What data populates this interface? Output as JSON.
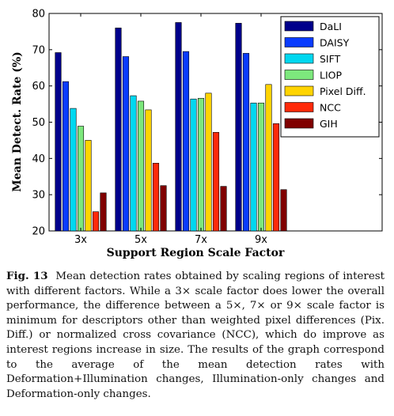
{
  "chart_data": {
    "type": "bar",
    "categories": [
      "3x",
      "5x",
      "7x",
      "9x"
    ],
    "series": [
      {
        "name": "DaLI",
        "color": "#00008b",
        "values": [
          69.2,
          76.0,
          77.5,
          77.3
        ]
      },
      {
        "name": "DAISY",
        "color": "#0a3cff",
        "values": [
          61.2,
          68.1,
          69.5,
          69.0
        ]
      },
      {
        "name": "SIFT",
        "color": "#00d8f0",
        "values": [
          53.8,
          57.3,
          56.4,
          55.3
        ]
      },
      {
        "name": "LIOP",
        "color": "#7de87d",
        "values": [
          48.9,
          55.8,
          56.6,
          55.3
        ]
      },
      {
        "name": "Pixel Diff.",
        "color": "#ffd400",
        "values": [
          45.0,
          53.4,
          58.0,
          60.4
        ]
      },
      {
        "name": "NCC",
        "color": "#ff2a0a",
        "values": [
          25.3,
          38.7,
          47.2,
          49.6
        ]
      },
      {
        "name": "GIH",
        "color": "#800000",
        "values": [
          30.5,
          32.5,
          32.3,
          31.4
        ]
      }
    ],
    "xlabel": "Support Region Scale Factor",
    "ylabel": "Mean Detect. Rate (%)",
    "ylim": [
      20,
      80
    ],
    "yticks": [
      20,
      30,
      40,
      50,
      60,
      70,
      80
    ],
    "legend_position": "top-right",
    "grid": false
  },
  "caption": {
    "label": "Fig. 13",
    "text": "Mean detection rates obtained by scaling regions of interest with different factors. While a 3× scale factor does lower the overall performance, the difference between a 5×, 7× or 9× scale factor is minimum for descriptors other than weighted pixel differences (Pix. Diff.) or normalized cross covariance (NCC), which do improve as interest regions increase in size. The results of the graph correspond to the average of the mean detection rates with Deformation+Illumination changes, Illumination-only changes and Deformation-only changes."
  }
}
